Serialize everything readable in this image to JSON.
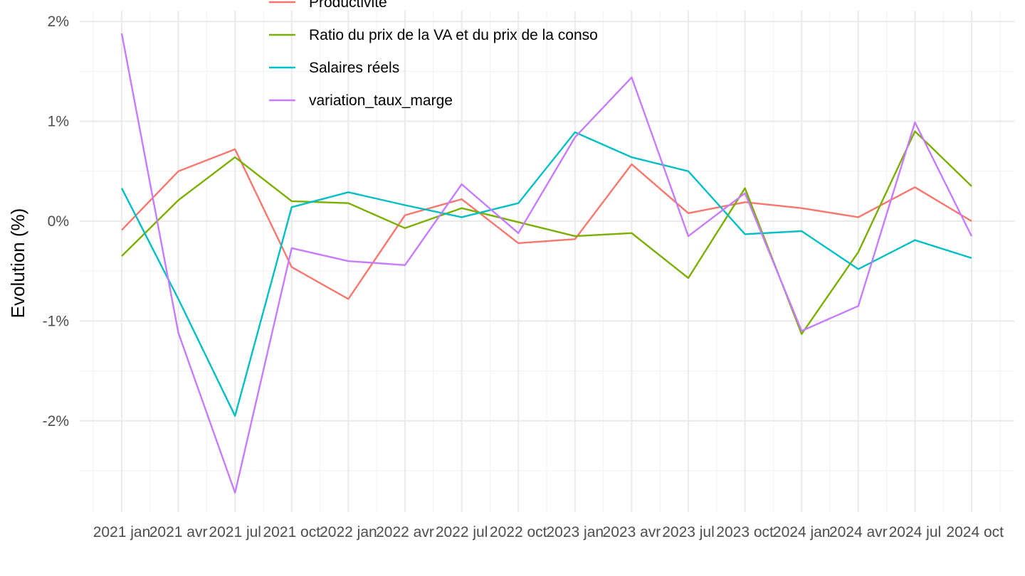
{
  "chart_data": {
    "type": "line",
    "title": "",
    "xlabel": "",
    "ylabel": "Evolution (%)",
    "x": [
      "2021 jan",
      "2021 avr",
      "2021 jul",
      "2021 oct",
      "2022 jan",
      "2022 avr",
      "2022 jul",
      "2022 oct",
      "2023 jan",
      "2023 avr",
      "2023 jul",
      "2023 oct",
      "2024 jan",
      "2024 avr",
      "2024 jul",
      "2024 oct"
    ],
    "x_tick_labels": [
      "2021 jan",
      "2021 avr",
      "2021 jul",
      "2021 oct",
      "2022 jan",
      "2022 avr",
      "2022 jul",
      "2022 oct",
      "2023 jan",
      "2023 avr",
      "2023 jul",
      "2023 oct",
      "2024 jan",
      "2024 avr",
      "2024 jul",
      "2024 oct"
    ],
    "y_ticks": [
      2,
      1,
      0,
      -1,
      -2
    ],
    "y_tick_labels": [
      "2%",
      "1%",
      "0%",
      "-1%",
      "-2%"
    ],
    "ylim": [
      -2.9,
      2.1
    ],
    "grid": true,
    "legend_position": "top-left",
    "series": [
      {
        "name": "Productivité",
        "color": "#F8766D",
        "values": [
          -0.09,
          0.5,
          0.72,
          -0.46,
          -0.78,
          0.06,
          0.22,
          -0.22,
          -0.18,
          0.57,
          0.08,
          0.19,
          0.13,
          0.04,
          0.34,
          0.0
        ]
      },
      {
        "name": "Ratio du prix de la VA et du prix de la conso",
        "color": "#7CAE00",
        "values": [
          -0.35,
          0.21,
          0.64,
          0.2,
          0.18,
          -0.07,
          0.13,
          -0.01,
          -0.15,
          -0.12,
          -0.57,
          0.33,
          -1.13,
          -0.31,
          0.9,
          0.35
        ]
      },
      {
        "name": "Salaires réels",
        "color": "#00BFC4",
        "values": [
          0.33,
          -0.78,
          -1.95,
          0.14,
          0.29,
          0.16,
          0.04,
          0.18,
          0.89,
          0.64,
          0.5,
          -0.13,
          -0.1,
          -0.48,
          -0.19,
          -0.37
        ]
      },
      {
        "name": "variation_taux_marge",
        "color": "#C77CFF",
        "values": [
          1.88,
          -1.12,
          -2.72,
          -0.27,
          -0.4,
          -0.44,
          0.37,
          -0.12,
          0.84,
          1.44,
          -0.15,
          0.28,
          -1.1,
          -0.85,
          0.99,
          -0.15
        ]
      }
    ]
  }
}
